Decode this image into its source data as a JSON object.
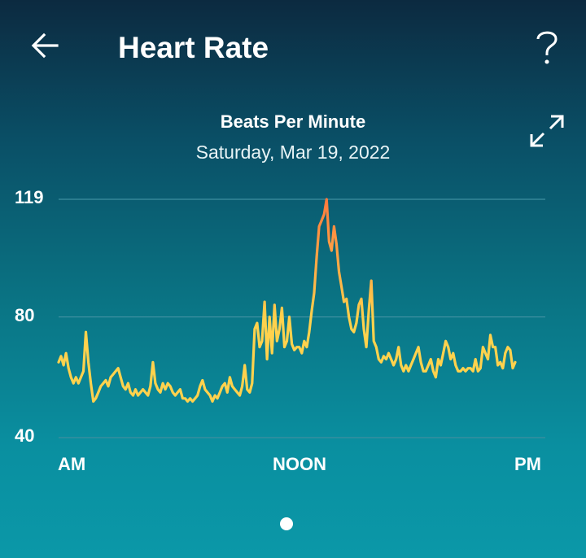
{
  "header": {
    "title": "Heart Rate",
    "back_icon": "arrow-left-icon",
    "help_icon": "question-mark-icon",
    "expand_icon": "expand-icon"
  },
  "colors": {
    "line_low": "#ffd24d",
    "line_high": "#ff7a3d",
    "gridline": "#3d8fa0"
  },
  "chart_data": {
    "type": "line",
    "title": "Beats Per Minute",
    "subtitle": "Saturday, Mar 19, 2022",
    "xlabel": "",
    "ylabel": "",
    "ylim": [
      40,
      119
    ],
    "yticks": [
      "119",
      "80",
      "40"
    ],
    "xticks": [
      "AM",
      "NOON",
      "PM"
    ],
    "grid": true,
    "series": [
      {
        "values": [
          65,
          67,
          64,
          68,
          63,
          60,
          58,
          60,
          58,
          60,
          62,
          75,
          65,
          58,
          52,
          53,
          55,
          57,
          58,
          59,
          57,
          60,
          61,
          62,
          63,
          60,
          57,
          56,
          58,
          55,
          54,
          56,
          54,
          55,
          56,
          55,
          54,
          57,
          65,
          58,
          56,
          55,
          58,
          56,
          58,
          57,
          55,
          54,
          55,
          56,
          53,
          53,
          52,
          53,
          52,
          53,
          54,
          57,
          59,
          56,
          55,
          54,
          52,
          54,
          53,
          55,
          57,
          58,
          55,
          60,
          57,
          56,
          55,
          54,
          57,
          64,
          56,
          55,
          58,
          76,
          78,
          70,
          72,
          85,
          66,
          80,
          68,
          84,
          72,
          76,
          83,
          70,
          72,
          80,
          71,
          69,
          70,
          70,
          68,
          72,
          70,
          75,
          82,
          88,
          100,
          110,
          112,
          114,
          119,
          105,
          102,
          110,
          104,
          95,
          90,
          85,
          86,
          80,
          76,
          75,
          78,
          84,
          86,
          76,
          70,
          82,
          92,
          72,
          70,
          66,
          65,
          67,
          66,
          68,
          66,
          64,
          66,
          70,
          64,
          62,
          64,
          62,
          64,
          66,
          68,
          70,
          65,
          62,
          62,
          64,
          66,
          62,
          60,
          66,
          64,
          68,
          72,
          70,
          66,
          68,
          64,
          62,
          62,
          63,
          62,
          63,
          63,
          62,
          66,
          62,
          63,
          70,
          68,
          66,
          74,
          70,
          70,
          64,
          65,
          63,
          68,
          70,
          69,
          63,
          65
        ]
      }
    ]
  },
  "pager": {
    "pages": 1,
    "current": 1
  }
}
